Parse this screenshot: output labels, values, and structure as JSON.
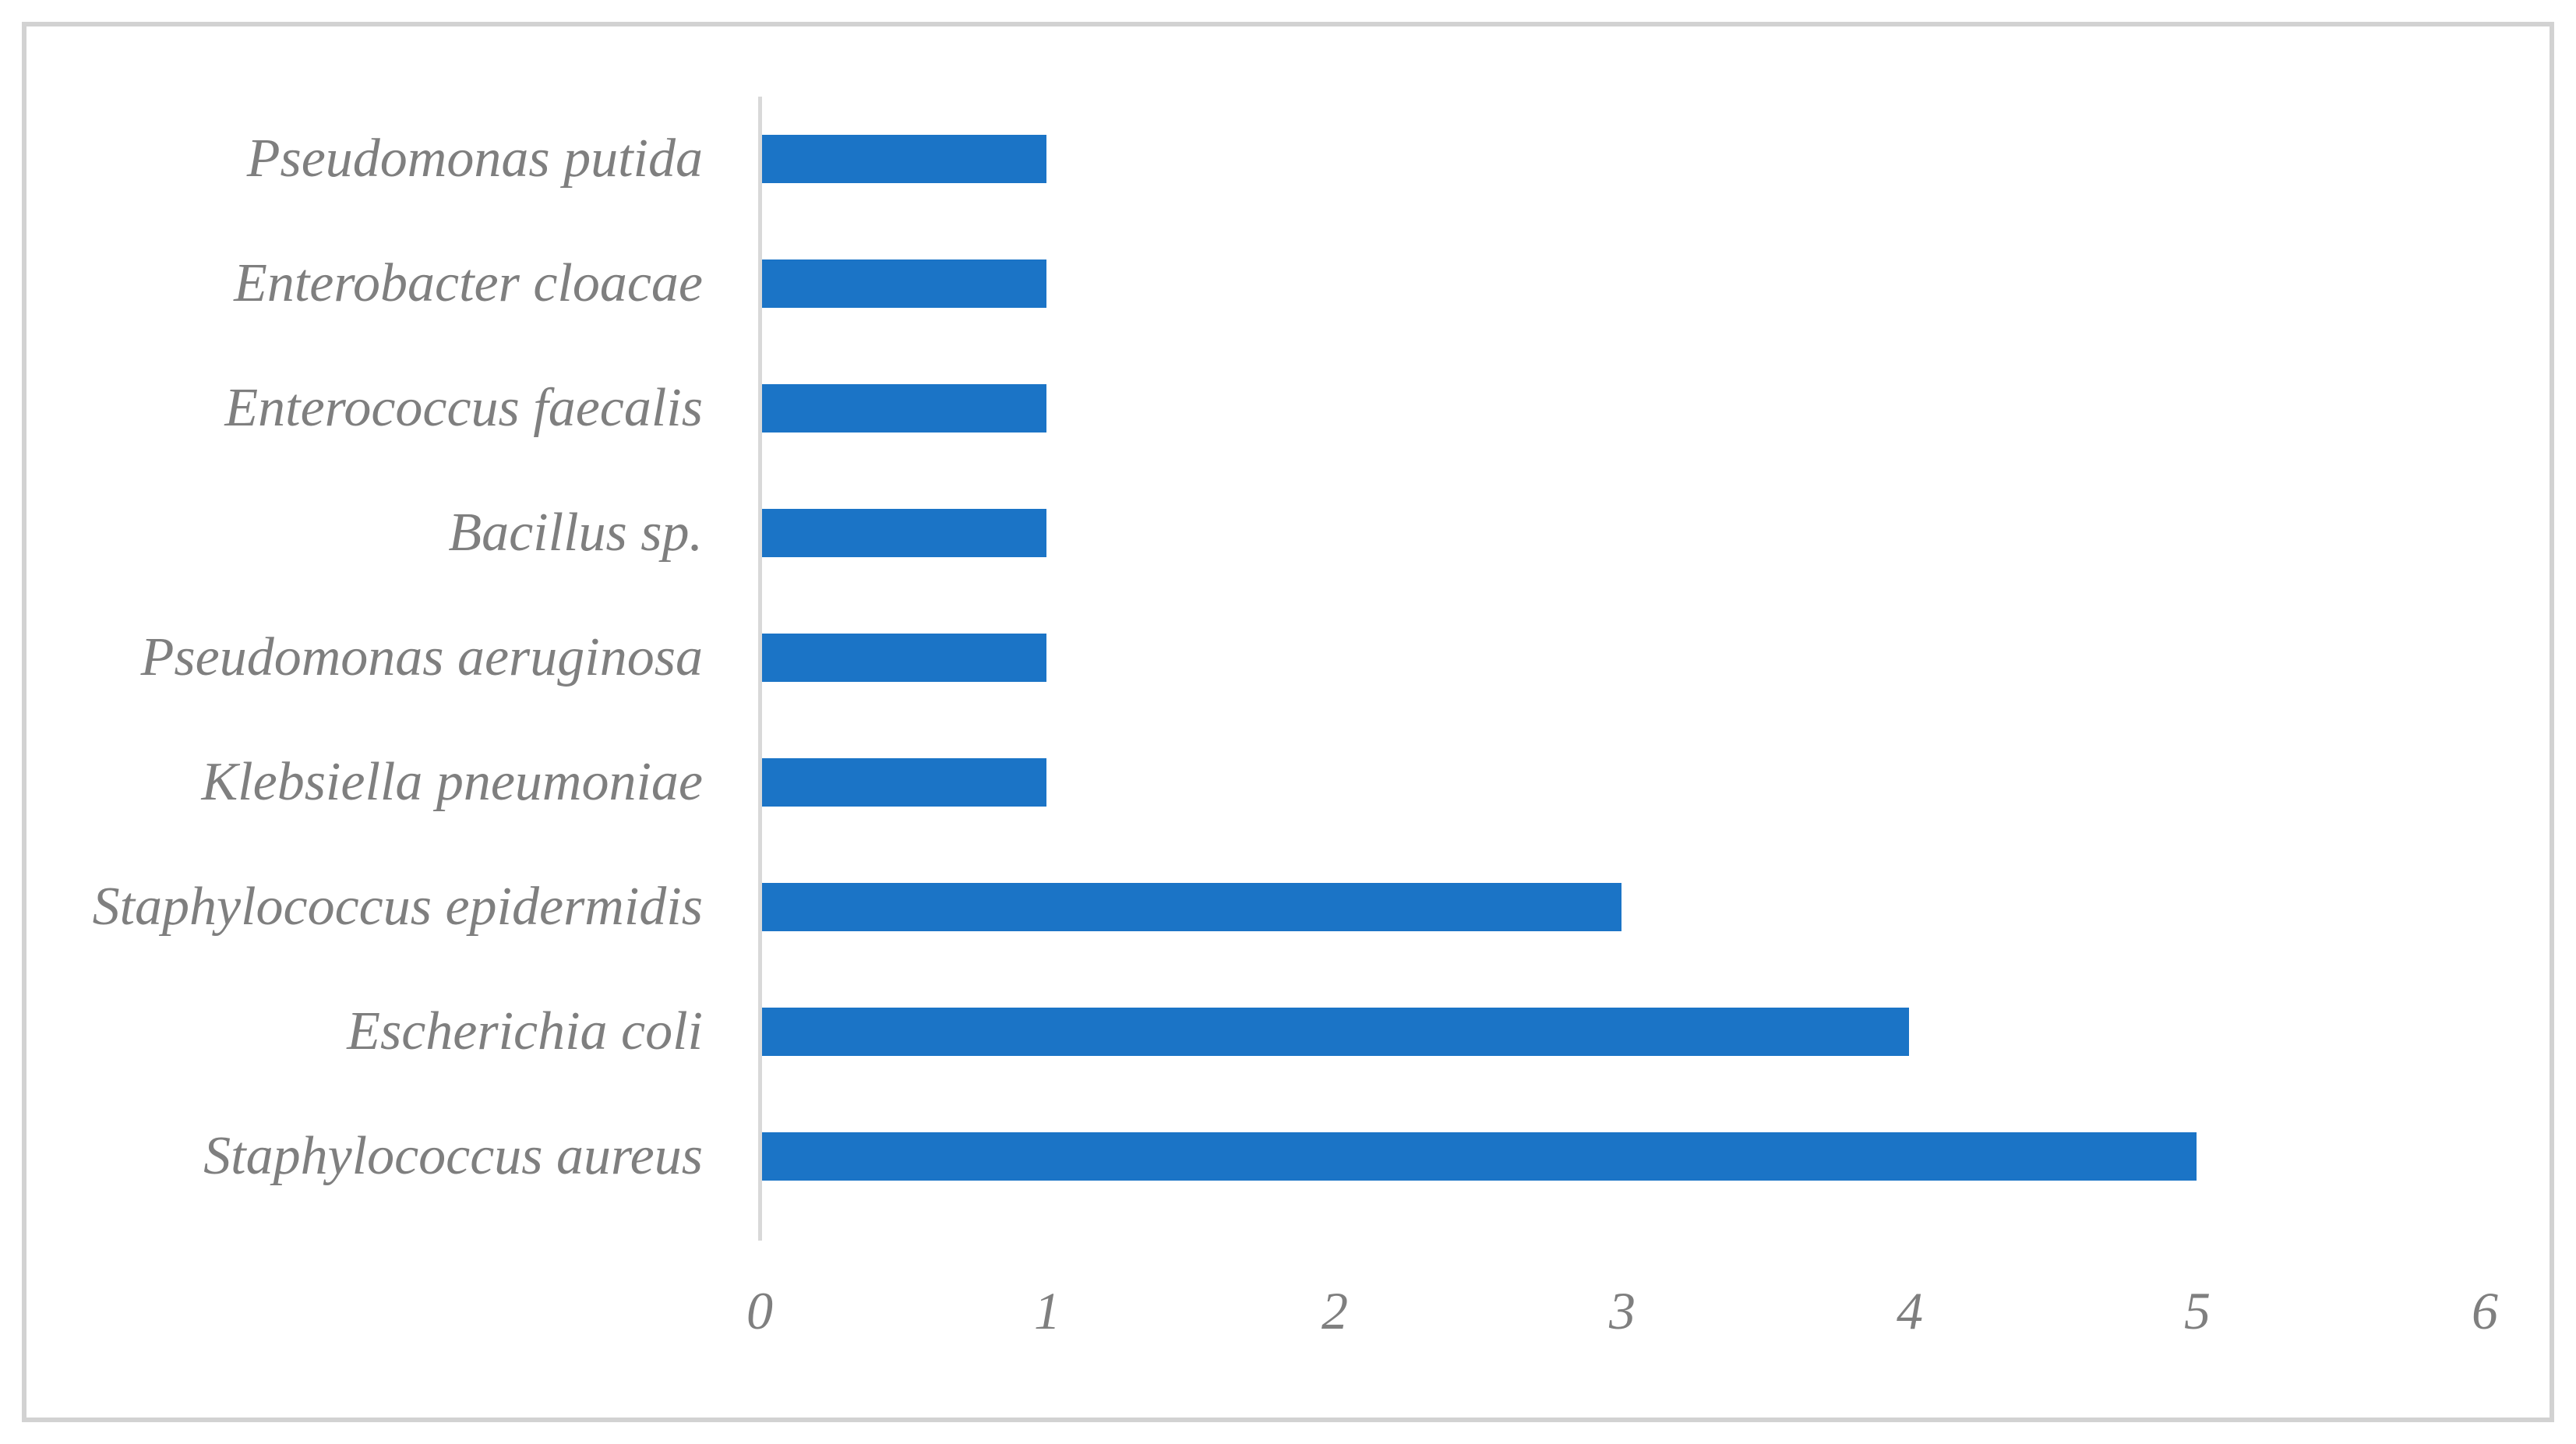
{
  "chart_data": {
    "type": "bar",
    "orientation": "horizontal",
    "title": "",
    "xlabel": "",
    "ylabel": "",
    "categories": [
      "Pseudomonas putida",
      "Enterobacter cloacae",
      "Enterococcus faecalis",
      "Bacillus sp.",
      "Pseudomonas aeruginosa",
      "Klebsiella pneumoniae",
      "Staphylococcus epidermidis",
      "Escherichia coli",
      "Staphylococcus aureus"
    ],
    "values": [
      1,
      1,
      1,
      1,
      1,
      1,
      3,
      4,
      5
    ],
    "x_ticks": [
      "0",
      "1",
      "2",
      "3",
      "4",
      "5",
      "6"
    ],
    "xlim": [
      0,
      6
    ],
    "grid": false,
    "legend": false,
    "colors": {
      "bar": "#1b74c6",
      "label": "#7f7f7f",
      "axis_line": "#d9d9d9",
      "frame_border": "#d2d2d2",
      "background": "#ffffff"
    }
  }
}
